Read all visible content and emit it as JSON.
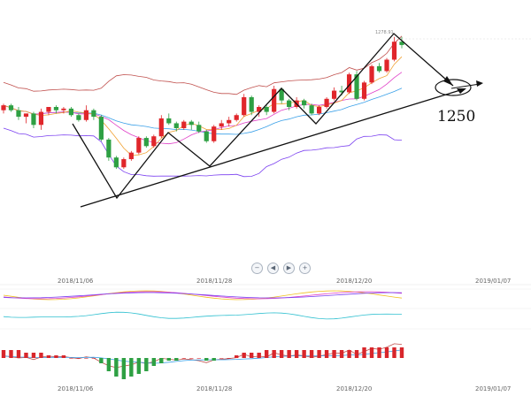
{
  "chart_data": {
    "type": "candlestick",
    "peak_label": "1278.91",
    "annotation": "1250",
    "x_dates": [
      "2018/11/06",
      "2018/11/28",
      "2018/12/20",
      "2019/01/07"
    ],
    "price_range": [
      1178,
      1281
    ],
    "candles": [
      [
        1234,
        1238,
        1232,
        1237
      ],
      [
        1237,
        1238,
        1233,
        1234
      ],
      [
        1234,
        1236,
        1228,
        1230
      ],
      [
        1230,
        1232,
        1226,
        1232
      ],
      [
        1232,
        1233,
        1223,
        1225
      ],
      [
        1225,
        1235,
        1222,
        1233
      ],
      [
        1233,
        1236,
        1231,
        1236
      ],
      [
        1236,
        1237,
        1232,
        1234
      ],
      [
        1234,
        1236,
        1232,
        1235
      ],
      [
        1235,
        1236,
        1230,
        1231
      ],
      [
        1231,
        1232,
        1227,
        1228
      ],
      [
        1228,
        1237,
        1227,
        1234
      ],
      [
        1234,
        1235,
        1228,
        1230
      ],
      [
        1230,
        1231,
        1215,
        1216
      ],
      [
        1216,
        1217,
        1203,
        1205
      ],
      [
        1205,
        1206,
        1198,
        1199
      ],
      [
        1199,
        1205,
        1198,
        1204
      ],
      [
        1204,
        1209,
        1203,
        1208
      ],
      [
        1208,
        1218,
        1207,
        1217
      ],
      [
        1217,
        1218,
        1211,
        1212
      ],
      [
        1212,
        1219,
        1211,
        1218
      ],
      [
        1218,
        1231,
        1217,
        1229
      ],
      [
        1229,
        1232,
        1225,
        1226
      ],
      [
        1226,
        1227,
        1221,
        1223
      ],
      [
        1223,
        1228,
        1222,
        1227
      ],
      [
        1227,
        1228,
        1222,
        1225
      ],
      [
        1225,
        1227,
        1220,
        1221
      ],
      [
        1221,
        1222,
        1214,
        1215
      ],
      [
        1215,
        1225,
        1214,
        1224
      ],
      [
        1224,
        1228,
        1222,
        1226
      ],
      [
        1226,
        1230,
        1224,
        1228
      ],
      [
        1228,
        1232,
        1227,
        1231
      ],
      [
        1231,
        1244,
        1230,
        1242
      ],
      [
        1242,
        1243,
        1231,
        1233
      ],
      [
        1233,
        1237,
        1230,
        1236
      ],
      [
        1236,
        1237,
        1231,
        1233
      ],
      [
        1233,
        1249,
        1232,
        1247
      ],
      [
        1247,
        1248,
        1238,
        1240
      ],
      [
        1240,
        1241,
        1234,
        1236
      ],
      [
        1236,
        1242,
        1235,
        1240
      ],
      [
        1240,
        1241,
        1235,
        1237
      ],
      [
        1237,
        1238,
        1231,
        1232
      ],
      [
        1232,
        1237,
        1231,
        1236
      ],
      [
        1236,
        1242,
        1235,
        1241
      ],
      [
        1241,
        1248,
        1240,
        1246
      ],
      [
        1246,
        1249,
        1243,
        1245
      ],
      [
        1245,
        1257,
        1244,
        1256
      ],
      [
        1256,
        1258,
        1240,
        1241
      ],
      [
        1241,
        1252,
        1240,
        1251
      ],
      [
        1251,
        1262,
        1250,
        1261
      ],
      [
        1261,
        1263,
        1257,
        1258
      ],
      [
        1258,
        1266,
        1257,
        1265
      ],
      [
        1265,
        1279,
        1264,
        1276
      ],
      [
        1276,
        1279,
        1272,
        1274
      ]
    ],
    "volume_bars": [
      3,
      3,
      3,
      2,
      2,
      2,
      1,
      1,
      1,
      0,
      0,
      0,
      0,
      -2,
      -5,
      -7,
      -8,
      -7,
      -6,
      -5,
      -3,
      -2,
      -1,
      -1,
      0,
      0,
      0,
      -1,
      -1,
      0,
      0,
      1,
      2,
      2,
      2,
      3,
      3,
      3,
      3,
      3,
      3,
      3,
      3,
      3,
      3,
      3,
      3,
      3,
      4,
      4,
      4,
      4,
      4,
      4
    ]
  }
}
